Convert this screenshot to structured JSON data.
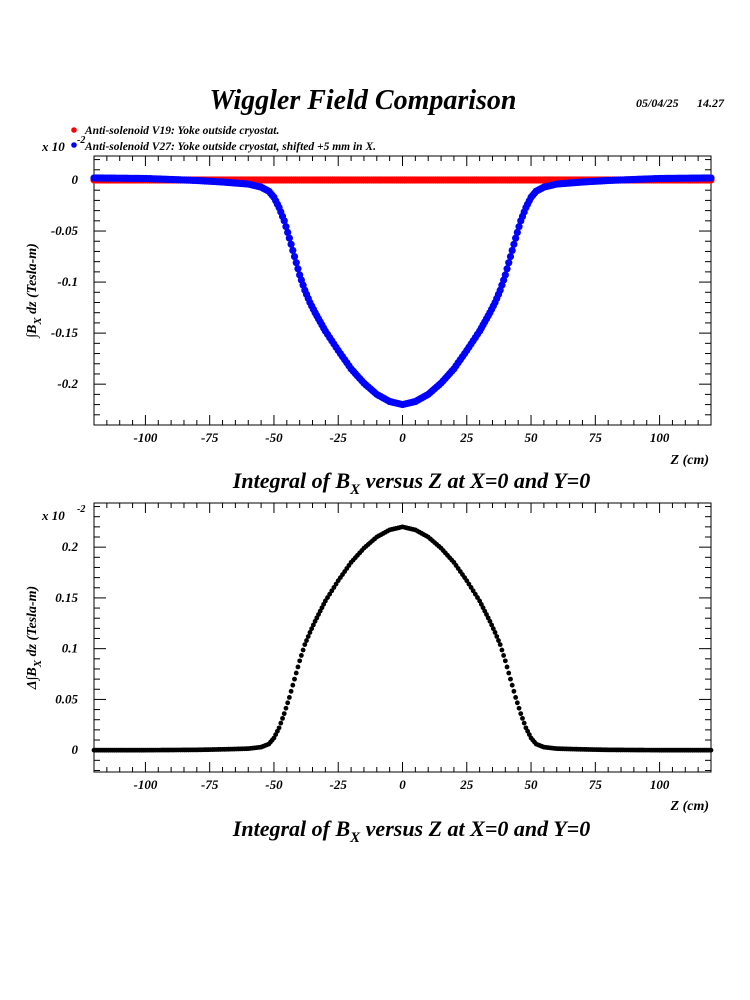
{
  "title": "Wiggler Field Comparison",
  "date": "05/04/25",
  "time": "14.27",
  "legend": [
    {
      "label": "Anti-solenoid V19: Yoke outside cryostat.",
      "color": "#ff0000"
    },
    {
      "label": "Anti-solenoid V27: Yoke outside cryostat, shifted +5 mm in X.",
      "color": "#0000ff"
    }
  ],
  "chart_data": [
    {
      "type": "scatter",
      "multiplier": {
        "base": "x 10",
        "exponent": "-2"
      },
      "ylabel": {
        "prefix": "∫B",
        "sub": "X",
        "suffix": " dz  (Tesla-m)"
      },
      "xlabel": "Z (cm)",
      "caption": {
        "pre": "Integral of B",
        "sub": "X",
        "post": " versus Z at X=0 and Y=0"
      },
      "xlim": [
        -120,
        120
      ],
      "ylim": [
        -0.24,
        0.0235
      ],
      "xticks": [
        "-100",
        "-75",
        "-50",
        "-25",
        "0",
        "25",
        "50",
        "75",
        "100"
      ],
      "xtick_values": [
        -100,
        -75,
        -50,
        -25,
        0,
        25,
        50,
        75,
        100
      ],
      "yticks": [
        "0",
        "-0.05",
        "-0.1",
        "-0.15",
        "-0.2"
      ],
      "ytick_values": [
        0,
        -0.05,
        -0.1,
        -0.15,
        -0.2
      ],
      "series": [
        {
          "color": "#ff0000",
          "x": [
            -120,
            -100,
            -80,
            -60,
            -40,
            -20,
            0,
            20,
            40,
            60,
            80,
            100,
            120
          ],
          "y": [
            0,
            0,
            0,
            0,
            0,
            0,
            0,
            0,
            0,
            0,
            0,
            0,
            0
          ]
        },
        {
          "color": "#0000ff",
          "x": [
            -120,
            -100,
            -80,
            -70,
            -60,
            -55,
            -52,
            -50,
            -48,
            -46,
            -44,
            -42,
            -40,
            -38,
            -36,
            -34,
            -32,
            -30,
            -25,
            -20,
            -15,
            -10,
            -5,
            0,
            5,
            10,
            15,
            20,
            25,
            30,
            32,
            34,
            36,
            38,
            40,
            42,
            44,
            46,
            48,
            50,
            52,
            55,
            60,
            70,
            80,
            100,
            120
          ],
          "y": [
            0.002,
            0.0015,
            -0.0005,
            -0.002,
            -0.004,
            -0.007,
            -0.011,
            -0.017,
            -0.027,
            -0.04,
            -0.057,
            -0.075,
            -0.093,
            -0.108,
            -0.12,
            -0.13,
            -0.139,
            -0.148,
            -0.167,
            -0.185,
            -0.199,
            -0.21,
            -0.217,
            -0.22,
            -0.217,
            -0.21,
            -0.199,
            -0.185,
            -0.167,
            -0.148,
            -0.139,
            -0.13,
            -0.12,
            -0.108,
            -0.093,
            -0.075,
            -0.057,
            -0.04,
            -0.027,
            -0.017,
            -0.011,
            -0.007,
            -0.004,
            -0.002,
            -0.0005,
            0.0015,
            0.002
          ]
        }
      ]
    },
    {
      "type": "scatter",
      "multiplier": {
        "base": "x 10",
        "exponent": "-2"
      },
      "ylabel": {
        "prefix": "Δ∫B",
        "sub": "X",
        "suffix": " dz  (Tesla-m)"
      },
      "xlabel": "Z (cm)",
      "caption": {
        "pre": "Integral of B",
        "sub": "X",
        "post": " versus Z at X=0 and Y=0"
      },
      "xlim": [
        -120,
        120
      ],
      "ylim": [
        -0.0215,
        0.2435
      ],
      "xticks": [
        "-100",
        "-75",
        "-50",
        "-25",
        "0",
        "25",
        "50",
        "75",
        "100"
      ],
      "xtick_values": [
        -100,
        -75,
        -50,
        -25,
        0,
        25,
        50,
        75,
        100
      ],
      "yticks": [
        "0",
        "0.05",
        "0.1",
        "0.15",
        "0.2"
      ],
      "ytick_values": [
        0,
        0.05,
        0.1,
        0.15,
        0.2
      ],
      "series": [
        {
          "color": "#000000",
          "x": [
            -120,
            -100,
            -80,
            -70,
            -60,
            -55,
            -52,
            -50,
            -48,
            -46,
            -44,
            -42,
            -40,
            -38,
            -36,
            -34,
            -32,
            -30,
            -25,
            -20,
            -15,
            -10,
            -5,
            0,
            5,
            10,
            15,
            20,
            25,
            30,
            32,
            34,
            36,
            38,
            40,
            42,
            44,
            46,
            48,
            50,
            52,
            55,
            60,
            70,
            80,
            100,
            120
          ],
          "y": [
            0,
            0,
            0.0003,
            0.0008,
            0.0015,
            0.003,
            0.006,
            0.012,
            0.022,
            0.036,
            0.052,
            0.07,
            0.088,
            0.104,
            0.116,
            0.127,
            0.137,
            0.147,
            0.167,
            0.185,
            0.199,
            0.21,
            0.217,
            0.22,
            0.217,
            0.21,
            0.199,
            0.185,
            0.167,
            0.147,
            0.137,
            0.127,
            0.116,
            0.104,
            0.088,
            0.07,
            0.052,
            0.036,
            0.022,
            0.012,
            0.006,
            0.003,
            0.0015,
            0.0008,
            0.0003,
            0,
            0
          ]
        }
      ]
    }
  ]
}
